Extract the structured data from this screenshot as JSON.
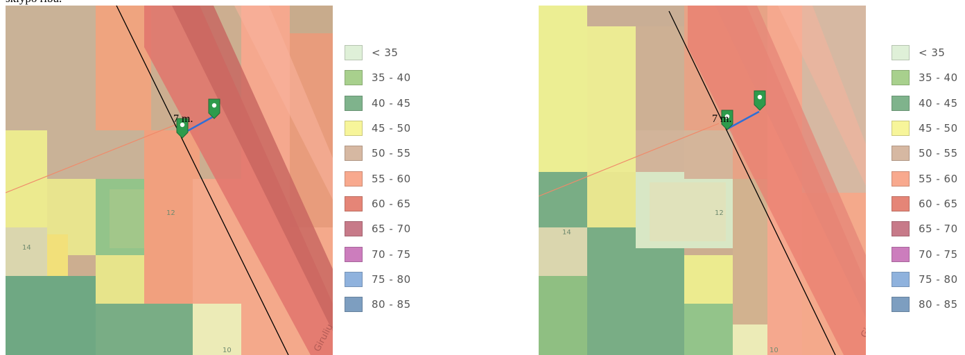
{
  "caption": "sklypo ribu.",
  "maps": [
    {
      "distance_label": "7 m.",
      "house_numbers": [
        "12",
        "14",
        "10"
      ],
      "street_label": "Girulių"
    },
    {
      "distance_label": "7 m.",
      "house_numbers": [
        "12",
        "14",
        "10"
      ],
      "street_label": "Girulių"
    }
  ],
  "legend": {
    "items": [
      {
        "label": "< 35",
        "color": "#dff0d8"
      },
      {
        "label": "35 - 40",
        "color": "#a8d08d"
      },
      {
        "label": "40 - 45",
        "color": "#7fb38c"
      },
      {
        "label": "45 - 50",
        "color": "#f7f59a"
      },
      {
        "label": "50 - 55",
        "color": "#d6b8a2"
      },
      {
        "label": "55 - 60",
        "color": "#f8a98e"
      },
      {
        "label": "60 - 65",
        "color": "#e58577"
      },
      {
        "label": "65 - 70",
        "color": "#c77a89"
      },
      {
        "label": "70 - 75",
        "color": "#cc7dbd"
      },
      {
        "label": "75 - 80",
        "color": "#8fb2dd"
      },
      {
        "label": "80 - 85",
        "color": "#7d9ec0"
      }
    ]
  }
}
